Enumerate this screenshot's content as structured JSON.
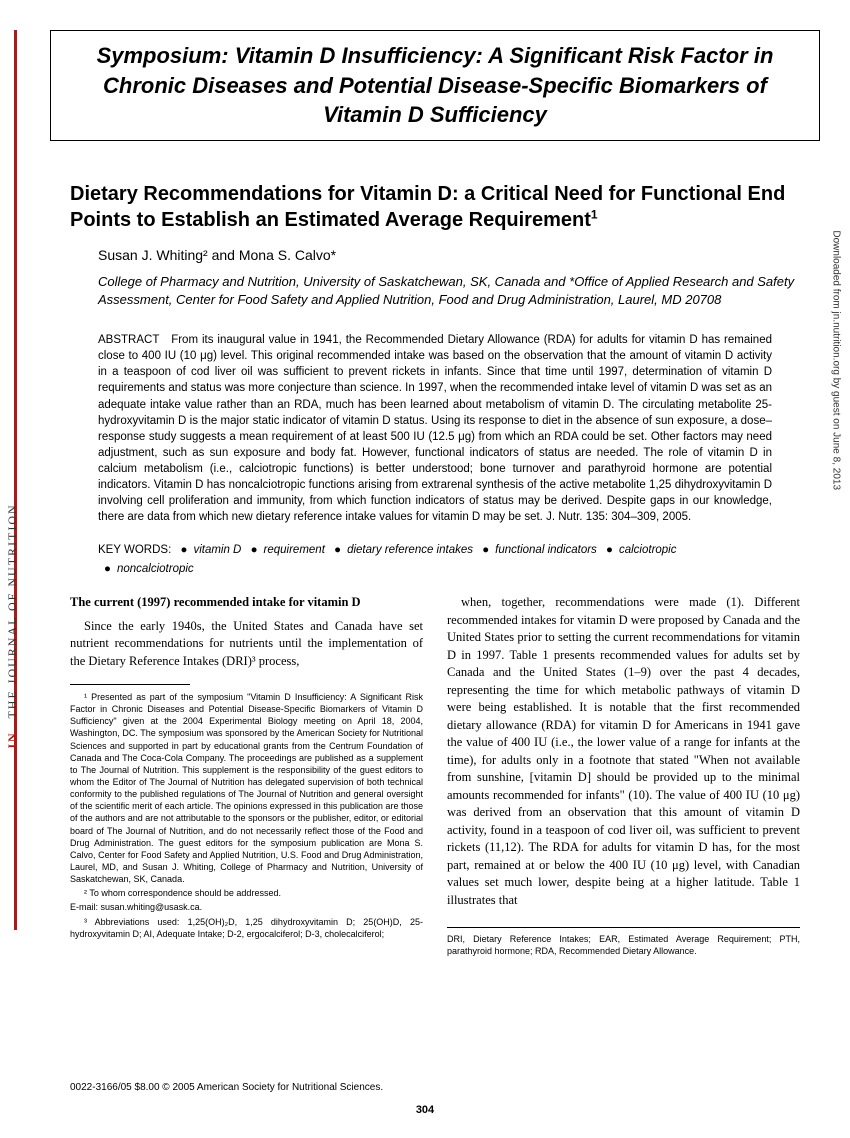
{
  "sidebar": {
    "jn": "JN",
    "journal": "THE JOURNAL OF NUTRITION"
  },
  "download_note": "Downloaded from jn.nutrition.org by guest on June 8, 2013",
  "symposium_title": "Symposium: Vitamin D Insufficiency: A Significant Risk Factor in Chronic Diseases and Potential Disease-Specific Biomarkers of Vitamin D Sufficiency",
  "article_title": "Dietary Recommendations for Vitamin D: a Critical Need for Functional End Points to Establish an Estimated Average Requirement",
  "title_sup": "1",
  "authors": "Susan J. Whiting² and Mona S. Calvo*",
  "affiliation": "College of Pharmacy and Nutrition, University of Saskatchewan, SK, Canada and *Office of Applied Research and Safety Assessment, Center for Food Safety and Applied Nutrition, Food and Drug Administration, Laurel, MD 20708",
  "abstract_label": "ABSTRACT",
  "abstract_text": "From its inaugural value in 1941, the Recommended Dietary Allowance (RDA) for adults for vitamin D has remained close to 400 IU (10 μg) level. This original recommended intake was based on the observation that the amount of vitamin D activity in a teaspoon of cod liver oil was sufficient to prevent rickets in infants. Since that time until 1997, determination of vitamin D requirements and status was more conjecture than science. In 1997, when the recommended intake level of vitamin D was set as an adequate intake value rather than an RDA, much has been learned about metabolism of vitamin D. The circulating metabolite 25-hydroxyvitamin D is the major static indicator of vitamin D status. Using its response to diet in the absence of sun exposure, a dose–response study suggests a mean requirement of at least 500 IU (12.5 μg) from which an RDA could be set. Other factors may need adjustment, such as sun exposure and body fat. However, functional indicators of status are needed. The role of vitamin D in calcium metabolism (i.e., calciotropic functions) is better understood; bone turnover and parathyroid hormone are potential indicators. Vitamin D has noncalciotropic functions arising from extrarenal synthesis of the active metabolite 1,25 dihydroxyvitamin D involving cell proliferation and immunity, from which function indicators of status may be derived. Despite gaps in our knowledge, there are data from which new dietary reference intake values for vitamin D may be set.    J. Nutr. 135: 304–309, 2005.",
  "keywords_label": "KEY WORDS:",
  "keywords": [
    "vitamin D",
    "requirement",
    "dietary reference intakes",
    "functional indicators",
    "calciotropic",
    "noncalciotropic"
  ],
  "section_head": "The current (1997) recommended intake for vitamin D",
  "col1_p1": "Since the early 1940s, the United States and Canada have set nutrient recommendations for nutrients until the implementation of the Dietary Reference Intakes (DRI)³ process,",
  "fn1": "¹ Presented as part of the symposium \"Vitamin D Insufficiency: A Significant Risk Factor in Chronic Diseases and Potential Disease-Specific Biomarkers of Vitamin D Sufficiency\" given at the 2004 Experimental Biology meeting on April 18, 2004, Washington, DC. The symposium was sponsored by the American Society for Nutritional Sciences and supported in part by educational grants from the Centrum Foundation of Canada and The Coca-Cola Company. The proceedings are published as a supplement to The Journal of Nutrition. This supplement is the responsibility of the guest editors to whom the Editor of The Journal of Nutrition has delegated supervision of both technical conformity to the published regulations of The Journal of Nutrition and general oversight of the scientific merit of each article. The opinions expressed in this publication are those of the authors and are not attributable to the sponsors or the publisher, editor, or editorial board of The Journal of Nutrition, and do not necessarily reflect those of the Food and Drug Administration. The guest editors for the symposium publication are Mona S. Calvo, Center for Food Safety and Applied Nutrition, U.S. Food and Drug Administration, Laurel, MD, and Susan J. Whiting, College of Pharmacy and Nutrition, University of Saskatchewan, SK, Canada.",
  "fn2": "² To whom correspondence should be addressed.",
  "fn2_email": "E-mail: susan.whiting@usask.ca.",
  "fn3": "³ Abbreviations used: 1,25(OH)₂D, 1,25 dihydroxyvitamin D; 25(OH)D, 25-hydroxyvitamin D; AI, Adequate Intake; D-2, ergocalciferol; D-3, cholecalciferol;",
  "col2_p1": "when, together, recommendations were made (1). Different recommended intakes for vitamin D were proposed by Canada and the United States prior to setting the current recommendations for vitamin D in 1997. Table 1 presents recommended values for adults set by Canada and the United States (1–9) over the past 4 decades, representing the time for which metabolic pathways of vitamin D were being established. It is notable that the first recommended dietary allowance (RDA) for vitamin D for Americans in 1941 gave the value of 400 IU (i.e., the lower value of a range for infants at the time), for adults only in a footnote that stated \"When not available from sunshine, [vitamin D] should be provided up to the minimal amounts recommended for infants\" (10). The value of 400 IU (10 μg) was derived from an observation that this amount of vitamin D activity, found in a teaspoon of cod liver oil, was sufficient to prevent rickets (11,12). The RDA for adults for vitamin D has, for the most part, remained at or below the 400 IU (10 μg) level, with Canadian values set much lower, despite being at a higher latitude. Table 1 illustrates that",
  "right_footnote": "DRI, Dietary Reference Intakes; EAR, Estimated Average Requirement; PTH, parathyroid hormone; RDA, Recommended Dietary Allowance.",
  "bottom_line": "0022-3166/05 $8.00 © 2005 American Society for Nutritional Sciences.",
  "page_number": "304"
}
